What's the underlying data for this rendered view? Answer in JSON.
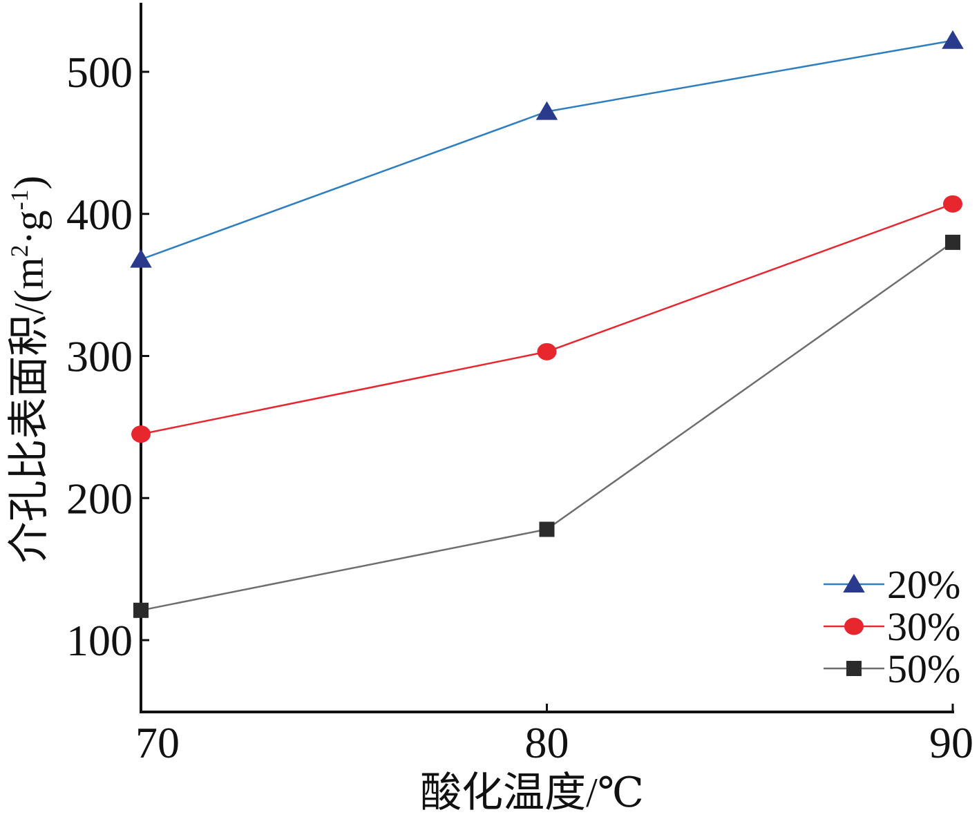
{
  "chart_data": {
    "type": "line",
    "title": "",
    "xlabel": "酸化温度/℃",
    "ylabel_main": "介孔比表面积/(m",
    "ylabel_sup1": "2",
    "ylabel_mid": "·g",
    "ylabel_sup2": "-1",
    "ylabel_end": ")",
    "x": [
      70,
      80,
      90
    ],
    "xlim": [
      70,
      90
    ],
    "ylim": [
      50,
      550
    ],
    "x_ticks": [
      "70",
      "80",
      "90"
    ],
    "y_ticks": [
      "100",
      "200",
      "300",
      "400",
      "500"
    ],
    "y_tick_values": [
      100,
      200,
      300,
      400,
      500
    ],
    "grid": false,
    "legend_position": "bottom-right",
    "series": [
      {
        "name": "20%",
        "values": [
          368,
          472,
          522
        ],
        "color": "#2a3a8c",
        "line_color": "#2f7fc0",
        "marker": "triangle"
      },
      {
        "name": "30%",
        "values": [
          245,
          303,
          407
        ],
        "color": "#e8262e",
        "line_color": "#e8262e",
        "marker": "circle"
      },
      {
        "name": "50%",
        "values": [
          121,
          178,
          380
        ],
        "color": "#2b2b2b",
        "line_color": "#6e6e6e",
        "marker": "square"
      }
    ]
  }
}
